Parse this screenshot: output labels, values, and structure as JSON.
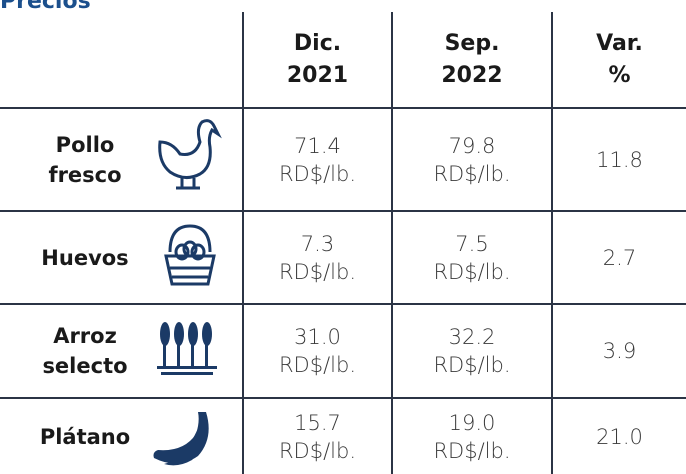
{
  "title": "Precios",
  "header": [
    [
      "Dic.",
      "2021"
    ],
    [
      "Sep.",
      "2022"
    ],
    [
      "Var.",
      "%"
    ]
  ],
  "rows": [
    {
      "product": [
        "Pollo",
        "fresco"
      ],
      "cells": [
        [
          "71.4",
          "RD$/lb."
        ],
        [
          "79.8",
          "RD$/lb."
        ],
        [
          "11.8"
        ]
      ]
    },
    {
      "product": [
        "Huevos"
      ],
      "cells": [
        [
          "7.3",
          "RD$/lb."
        ],
        [
          "7.5",
          "RD$/lb."
        ],
        [
          "2.7"
        ]
      ]
    },
    {
      "product": [
        "Arroz",
        "selecto"
      ],
      "cells": [
        [
          "31.0",
          "RD$/lb."
        ],
        [
          "32.2",
          "RD$/lb."
        ],
        [
          "3.9"
        ]
      ]
    },
    {
      "product": [
        "Plátano"
      ],
      "cells": [
        [
          "15.7",
          "RD$/lb."
        ],
        [
          "19.0",
          "RD$/lb."
        ],
        [
          "21.0"
        ]
      ]
    }
  ]
}
